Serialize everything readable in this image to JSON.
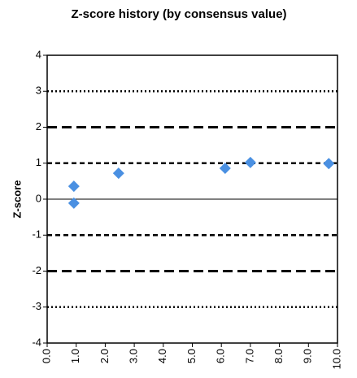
{
  "chart_data": {
    "type": "scatter",
    "title": "Z-score history (by consensus value)",
    "y_label": "Z-score",
    "series": [
      {
        "name": "Z-score",
        "color": "#4a90e2",
        "x": [
          0.92,
          0.92,
          2.46,
          6.13,
          7.0,
          9.7
        ],
        "values": [
          0.36,
          -0.11,
          0.72,
          0.86,
          1.02,
          0.99
        ]
      }
    ],
    "xlim": [
      0,
      10
    ],
    "xticks": [
      {
        "value": 0,
        "label": "0.0"
      },
      {
        "value": 1,
        "label": "1.0"
      },
      {
        "value": 2,
        "label": "2.0"
      },
      {
        "value": 3,
        "label": "3.0"
      },
      {
        "value": 4,
        "label": "4.0"
      },
      {
        "value": 5,
        "label": "5.0"
      },
      {
        "value": 6,
        "label": "6.0"
      },
      {
        "value": 7,
        "label": "7.0"
      },
      {
        "value": 8,
        "label": "8.0"
      },
      {
        "value": 9,
        "label": "9.0"
      },
      {
        "value": 10,
        "label": "10.0"
      }
    ],
    "ylim": [
      -4,
      4
    ],
    "yticks": [
      -4,
      -3,
      -2,
      -1,
      0,
      1,
      2,
      3,
      4
    ],
    "reference_lines": [
      {
        "y": 3,
        "style": "dotted"
      },
      {
        "y": 2,
        "style": "long-dash"
      },
      {
        "y": 1,
        "style": "short-dash"
      },
      {
        "y": 0,
        "style": "solid"
      },
      {
        "y": -1,
        "style": "short-dash"
      },
      {
        "y": -2,
        "style": "long-dash"
      },
      {
        "y": -3,
        "style": "dotted"
      }
    ]
  }
}
